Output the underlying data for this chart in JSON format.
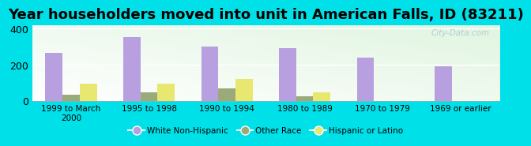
{
  "title": "Year householders moved into unit in American Falls, ID (83211)",
  "categories": [
    "1999 to March\n2000",
    "1995 to 1998",
    "1990 to 1994",
    "1980 to 1989",
    "1970 to 1979",
    "1969 or earlier"
  ],
  "series": {
    "White Non-Hispanic": [
      265,
      355,
      300,
      290,
      237,
      192
    ],
    "Other Race": [
      35,
      45,
      70,
      22,
      0,
      0
    ],
    "Hispanic or Latino": [
      95,
      95,
      120,
      45,
      0,
      0
    ]
  },
  "colors": {
    "White Non-Hispanic": "#b8a0e0",
    "Other Race": "#9aaa78",
    "Hispanic or Latino": "#e8e870"
  },
  "ylim": [
    0,
    420
  ],
  "yticks": [
    0,
    200,
    400
  ],
  "background_color": "#00e0e8",
  "bar_width": 0.22,
  "title_fontsize": 13,
  "watermark": "City-Data.com"
}
